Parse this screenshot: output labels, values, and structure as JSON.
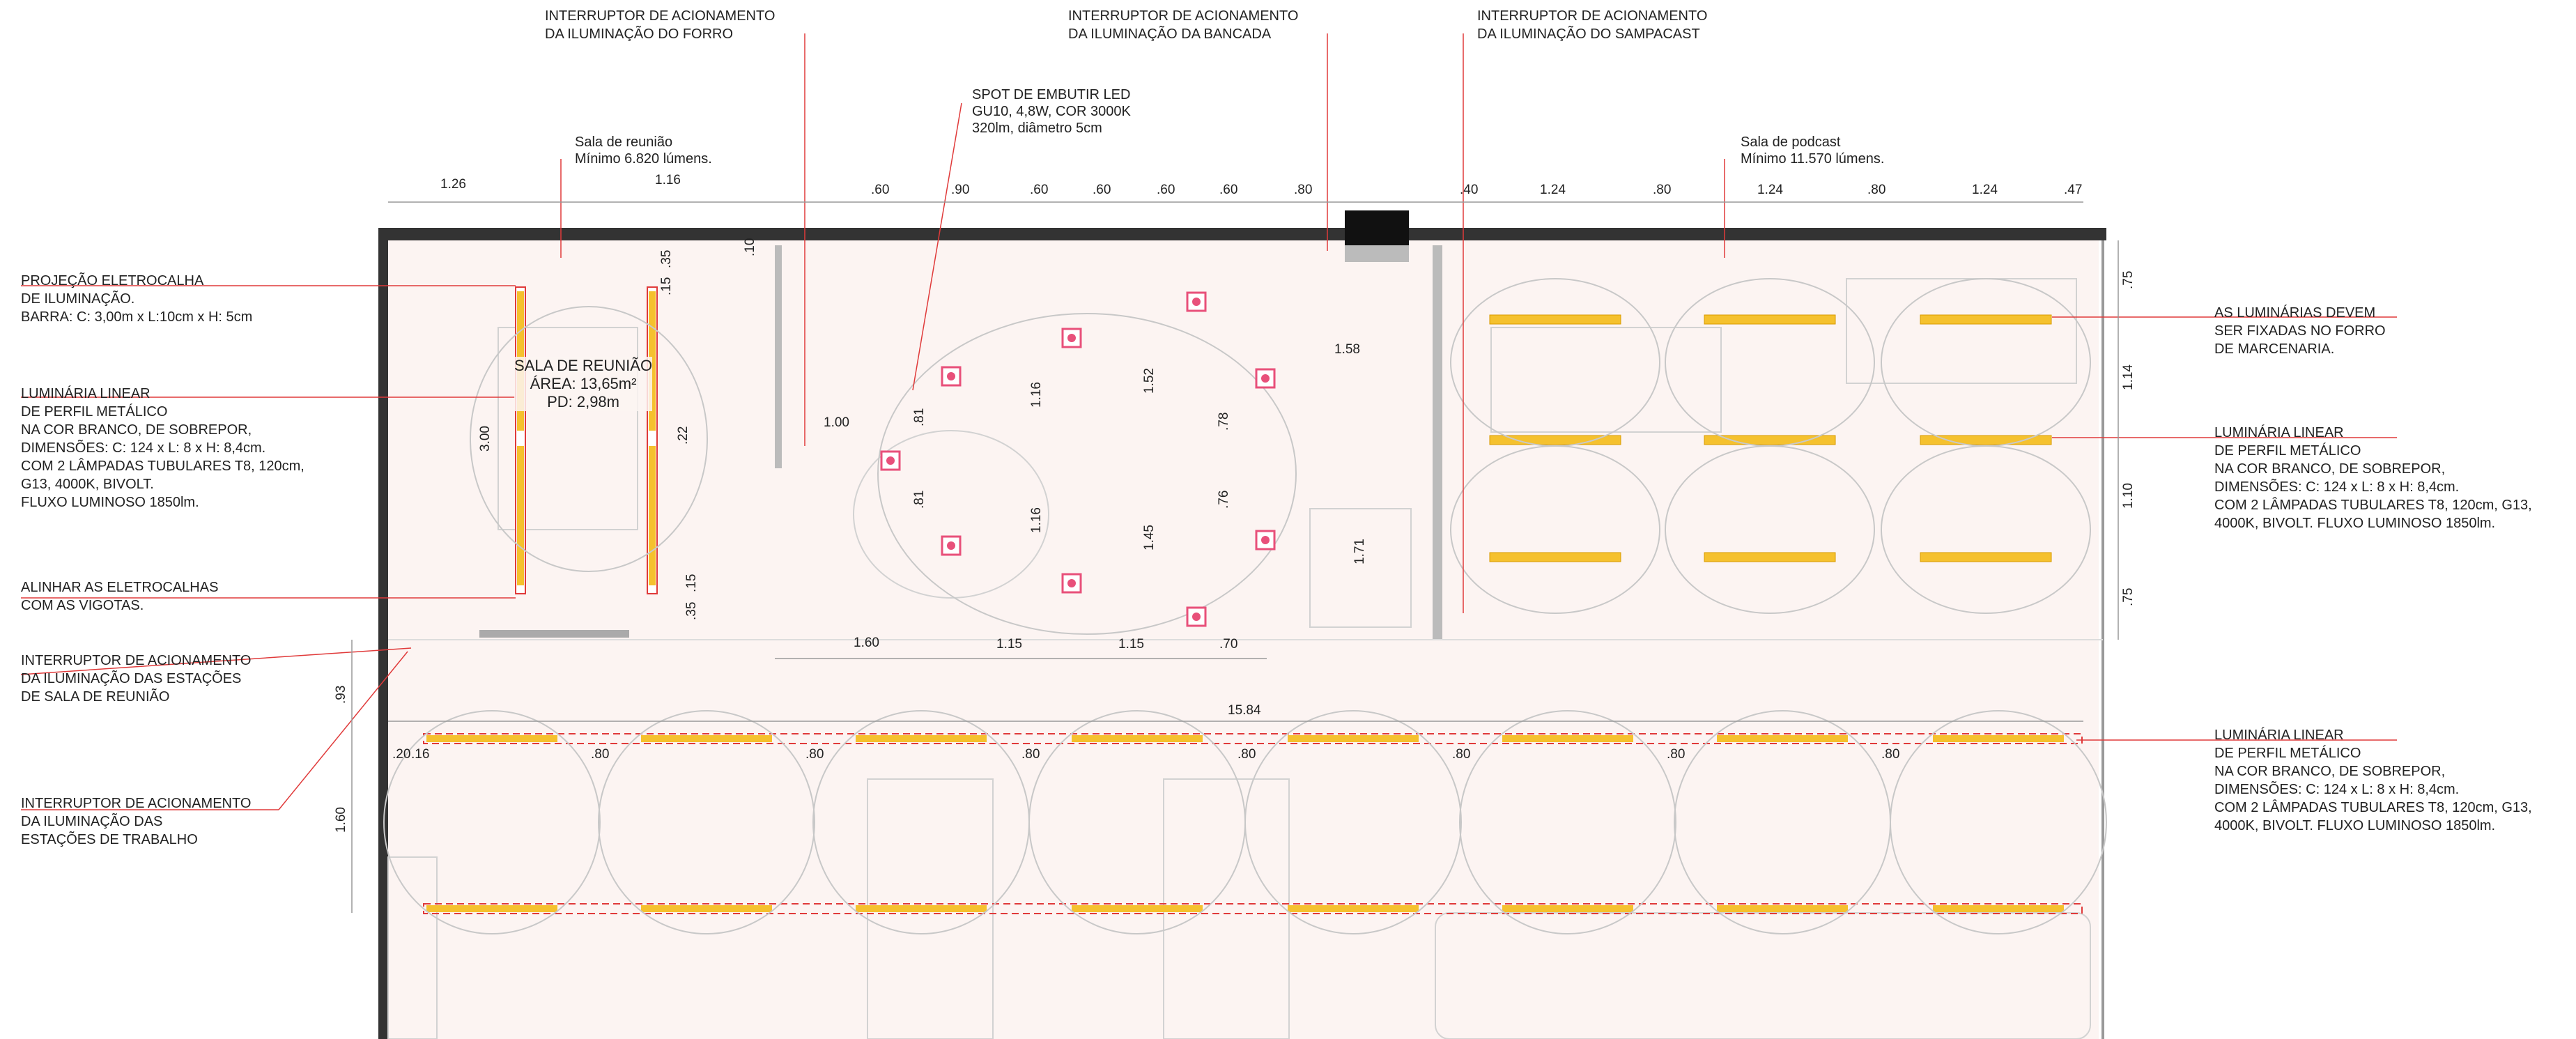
{
  "annotations": {
    "switch_forro": [
      "INTERRUPTOR DE ACIONAMENTO",
      "DA ILUMINAÇÃO DO FORRO"
    ],
    "switch_bancada": [
      "INTERRUPTOR DE ACIONAMENTO",
      "DA ILUMINAÇÃO DA BANCADA"
    ],
    "switch_sampacast": [
      "INTERRUPTOR DE ACIONAMENTO",
      "DA ILUMINAÇÃO DO SAMPACAST"
    ],
    "spot": [
      "SPOT DE EMBUTIR LED",
      "GU10, 4,8W, COR 3000K",
      "320lm, diâmetro 5cm"
    ],
    "meeting_room_note": [
      "Sala de reunião",
      "Mínimo 6.820 lúmens."
    ],
    "podcast_room_note": [
      "Sala de podcast",
      "Mínimo 11.570 lúmens."
    ],
    "eletrocalha": [
      "PROJEÇÃO ELETROCALHA",
      "DE ILUMINAÇÃO.",
      "BARRA: C: 3,00m x L:10cm x H: 5cm"
    ],
    "linear_left": [
      "LUMINÁRIA LINEAR",
      "DE PERFIL METÁLICO",
      "NA COR BRANCO, DE SOBREPOR,",
      "DIMENSÕES: C: 124 x L: 8 x H: 8,4cm.",
      "COM 2 LÂMPADAS TUBULARES T8, 120cm,",
      "G13, 4000K, BIVOLT.",
      "FLUXO LUMINOSO 1850lm."
    ],
    "align": [
      "ALINHAR AS ELETROCALHAS",
      "COM AS VIGOTAS."
    ],
    "switch_meeting": [
      "INTERRUPTOR DE ACIONAMENTO",
      "DA ILUMINAÇÃO DAS ESTAÇÕES",
      "DE SALA DE REUNIÃO"
    ],
    "switch_work": [
      "INTERRUPTOR DE ACIONAMENTO",
      "DA ILUMINAÇÃO DAS",
      "ESTAÇÕES DE TRABALHO"
    ],
    "marcenaria": [
      "AS LUMINÁRIAS DEVEM",
      "SER FIXADAS NO FORRO",
      "DE MARCENARIA."
    ],
    "linear_right_1": [
      "LUMINÁRIA LINEAR",
      "DE PERFIL METÁLICO",
      "NA COR BRANCO, DE SOBREPOR,",
      "DIMENSÕES: C: 124 x L: 8 x H: 8,4cm.",
      "COM 2 LÂMPADAS TUBULARES T8, 120cm, G13,",
      "4000K, BIVOLT. FLUXO LUMINOSO 1850lm."
    ],
    "linear_right_2": [
      "LUMINÁRIA LINEAR",
      "DE PERFIL METÁLICO",
      "NA COR BRANCO, DE SOBREPOR,",
      "DIMENSÕES: C: 124 x L: 8 x H: 8,4cm.",
      "COM 2 LÂMPADAS TUBULARES T8, 120cm, G13,",
      "4000K, BIVOLT. FLUXO LUMINOSO 1850lm."
    ]
  },
  "room": {
    "name": "SALA DE REUNIÃO",
    "area": "ÁREA: 13,65m²",
    "height": "PD: 2,98m"
  },
  "dimensions": {
    "top_left": [
      "1.26",
      "1.16"
    ],
    "top_center": [
      ".60",
      ".90",
      ".60",
      ".60",
      ".60",
      ".60",
      ".80"
    ],
    "top_right": [
      ".40",
      "1.24",
      ".80",
      "1.24",
      ".80",
      "1.24",
      ".47"
    ],
    "right_side": [
      ".75",
      "1.14",
      "1.10",
      ".75"
    ],
    "meeting": [
      "3.00",
      ".35",
      ".15",
      ".22",
      ".35",
      ".15",
      ".10"
    ],
    "bancada": [
      "1.00",
      ".81",
      ".81",
      "1.16",
      "1.16",
      "1.52",
      "1.45",
      ".78",
      ".76",
      "1.58",
      "1.71"
    ],
    "middle_row": [
      "1.60",
      "1.15",
      "1.15",
      ".70"
    ],
    "left_side": [
      ".93",
      "1.60"
    ],
    "stations_total": "15.84",
    "stations": [
      ".20",
      ".16",
      ".80",
      ".80",
      ".80",
      ".80",
      ".80",
      ".80",
      ".80"
    ]
  },
  "colors": {
    "accent_red": "#e03a3a",
    "luminaire_yellow": "#f5c12e",
    "spot_pink": "#e8507a",
    "wall": "#333333"
  }
}
